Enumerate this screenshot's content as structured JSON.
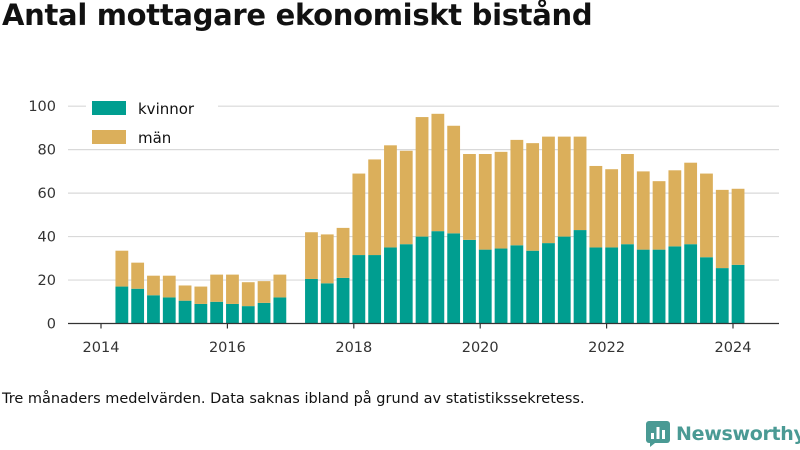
{
  "chart_data": {
    "type": "bar",
    "stacked": true,
    "title": "Antal mottagare ekonomiskt bistånd",
    "caption": "Tre månaders medelvärden. Data saknas ibland på grund av statistikssekretess.",
    "xlabel": "",
    "ylabel": "",
    "ylim": [
      0,
      105
    ],
    "xlim": [
      2013.6,
      2024.75
    ],
    "yticks": [
      0,
      20,
      40,
      60,
      80,
      100
    ],
    "xticks": [
      2014,
      2016,
      2018,
      2020,
      2022,
      2024
    ],
    "grid": "horizontal",
    "legend": "top-left",
    "x": [
      2014.33,
      2014.58,
      2014.83,
      2015.08,
      2015.33,
      2015.58,
      2015.83,
      2016.08,
      2016.33,
      2016.58,
      2016.83,
      2017.33,
      2017.58,
      2017.83,
      2018.08,
      2018.33,
      2018.58,
      2018.83,
      2019.08,
      2019.33,
      2019.58,
      2019.83,
      2020.08,
      2020.33,
      2020.58,
      2020.83,
      2021.08,
      2021.33,
      2021.58,
      2021.83,
      2022.08,
      2022.33,
      2022.58,
      2022.83,
      2023.08,
      2023.33,
      2023.58,
      2023.83,
      2024.08
    ],
    "series": [
      {
        "name": "kvinnor",
        "color": "#009e90",
        "values": [
          17,
          16,
          13,
          12,
          10.5,
          9,
          10,
          9,
          8,
          9.5,
          12,
          20.5,
          18.5,
          21,
          31.5,
          31.5,
          35,
          36.5,
          40,
          42.5,
          41.5,
          38.5,
          34,
          34.5,
          36,
          33.5,
          37,
          40,
          43,
          35,
          35,
          36.5,
          34,
          34,
          35.5,
          36.5,
          30.5,
          25.5,
          27
        ]
      },
      {
        "name": "män",
        "color": "#dbaf5b",
        "values": [
          16.5,
          12,
          9,
          10,
          7,
          8,
          12.5,
          13.5,
          11,
          10,
          10.5,
          21.5,
          22.5,
          23,
          37.5,
          44,
          47,
          43,
          55,
          54,
          49.5,
          39.5,
          44,
          44.5,
          48.5,
          49.5,
          49,
          46,
          43,
          37.5,
          36,
          41.5,
          36,
          31.5,
          35,
          37.5,
          38.5,
          36,
          35
        ]
      }
    ]
  },
  "brand": {
    "name": "Newsworthy",
    "color": "#4a9a94",
    "icon": "newsworthy-logo-icon"
  }
}
